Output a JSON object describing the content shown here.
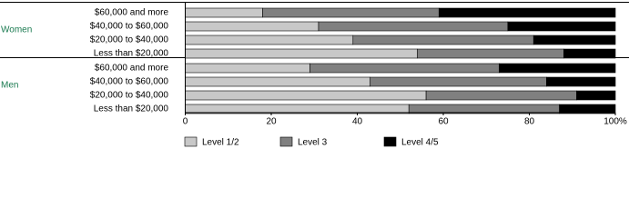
{
  "chart_data": {
    "type": "stacked-bar",
    "orientation": "horizontal",
    "series": [
      {
        "name": "Level 1/2",
        "color": "#c8c8c8"
      },
      {
        "name": "Level 3",
        "color": "#808080"
      },
      {
        "name": "Level 4/5",
        "color": "#000000"
      }
    ],
    "groups": [
      {
        "name": "Women",
        "categories": [
          "$60,000 and more",
          "$40,000 to $60,000",
          "$20,000 to $40,000",
          "Less than $20,000"
        ],
        "values": [
          [
            18,
            31,
            39,
            54
          ],
          [
            41,
            44,
            42,
            34
          ],
          [
            41,
            25,
            19,
            12
          ]
        ]
      },
      {
        "name": "Men",
        "categories": [
          "$60,000 and more",
          "$40,000 to $60,000",
          "$20,000 to $40,000",
          "Less than $20,000"
        ],
        "values": [
          [
            29,
            43,
            56,
            52
          ],
          [
            44,
            41,
            35,
            35
          ],
          [
            27,
            16,
            9,
            13
          ]
        ]
      }
    ],
    "xlim": [
      0,
      100
    ],
    "xticks": [
      0,
      20,
      40,
      60,
      80,
      {
        "value": 100,
        "label": "100%"
      }
    ],
    "legend": "bottom"
  }
}
